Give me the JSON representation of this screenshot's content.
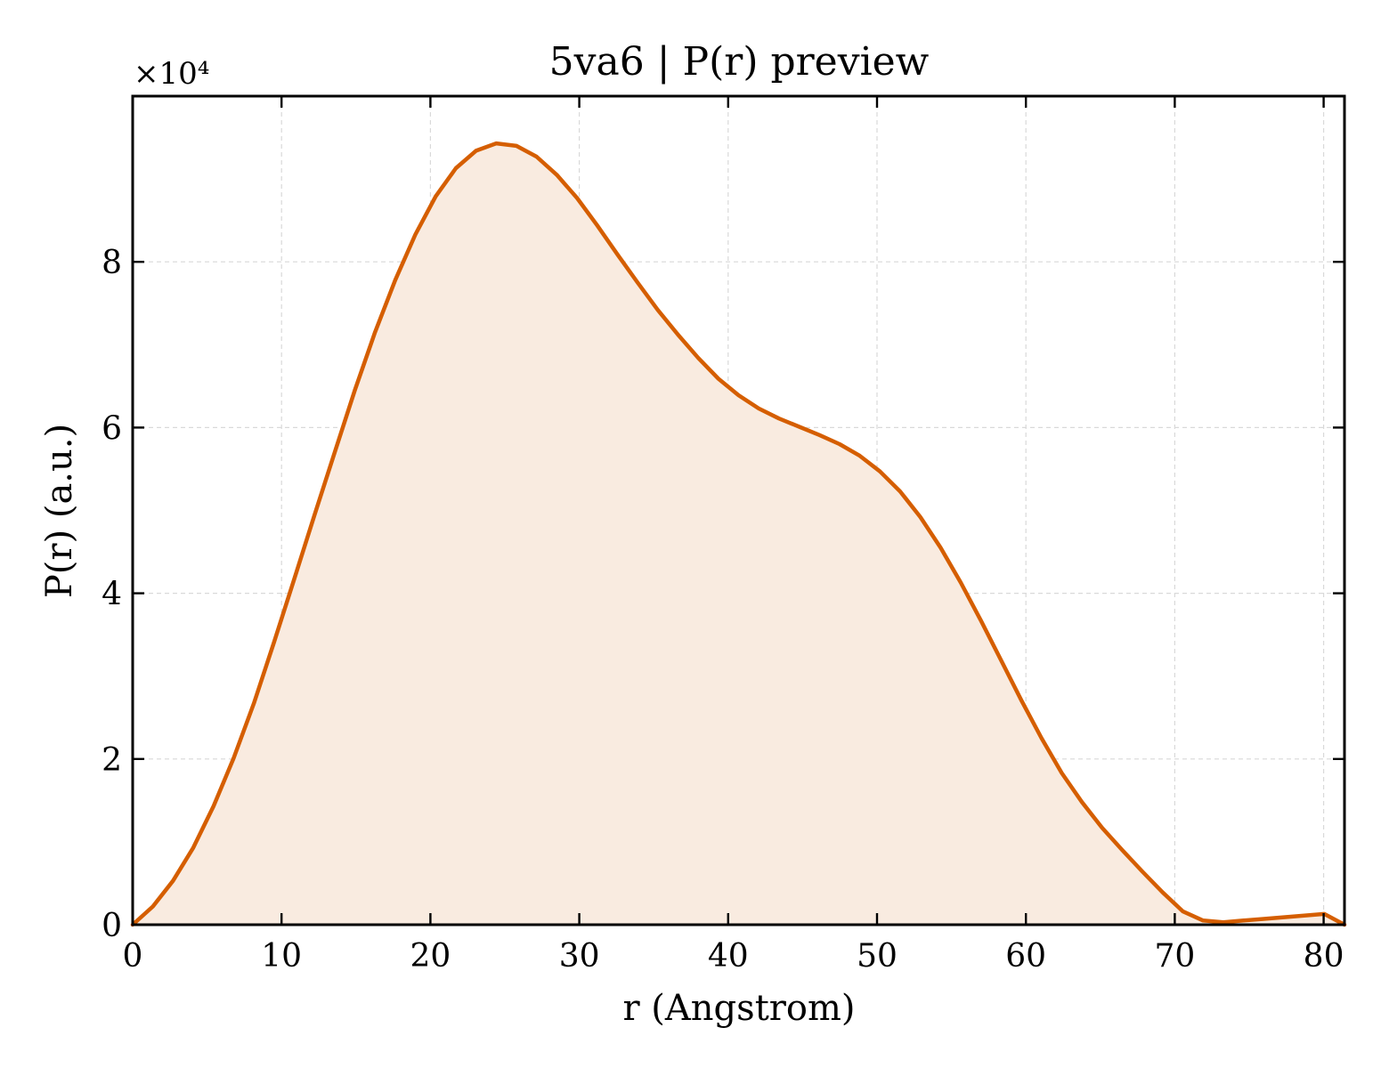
{
  "chart_data": {
    "type": "area",
    "title": "5va6 | P(r) preview",
    "xlabel": "r (Angstrom)",
    "ylabel": "P(r) (a.u.)",
    "y_offset_text": "×10⁴",
    "y_multiplier": 10000,
    "xlim": [
      0,
      81.4
    ],
    "ylim": [
      0,
      100000
    ],
    "xticks": [
      0,
      10,
      20,
      30,
      40,
      50,
      60,
      70,
      80
    ],
    "xtick_labels": [
      "0",
      "10",
      "20",
      "30",
      "40",
      "50",
      "60",
      "70",
      "80"
    ],
    "yticks": [
      0,
      20000,
      40000,
      60000,
      80000
    ],
    "ytick_labels": [
      "0",
      "2",
      "4",
      "6",
      "8"
    ],
    "grid": true,
    "colors": {
      "line": "#d55e00",
      "fill": "#f9ebe0",
      "grid": "#d9d9d9"
    },
    "series": [
      {
        "x": [
          0.0,
          1.36,
          2.71,
          4.07,
          5.43,
          6.78,
          8.14,
          9.5,
          10.85,
          12.21,
          13.57,
          14.92,
          16.28,
          17.64,
          18.99,
          20.35,
          21.71,
          23.06,
          24.42,
          25.78,
          27.13,
          28.49,
          29.85,
          31.2,
          32.56,
          33.92,
          35.27,
          36.63,
          37.99,
          39.34,
          40.7,
          42.06,
          43.41,
          44.77,
          46.13,
          47.48,
          48.84,
          50.2,
          51.55,
          52.91,
          54.27,
          55.62,
          56.98,
          58.34,
          59.69,
          61.05,
          62.41,
          63.76,
          65.12,
          66.48,
          67.83,
          69.19,
          70.55,
          71.9,
          73.26,
          74.62,
          75.97,
          77.33,
          78.69,
          80.04,
          81.4
        ],
        "y": [
          0,
          2200,
          5300,
          9300,
          14300,
          20100,
          26700,
          34100,
          41700,
          49400,
          57000,
          64500,
          71500,
          77800,
          83300,
          87900,
          91300,
          93400,
          94300,
          94000,
          92700,
          90500,
          87700,
          84400,
          80900,
          77500,
          74200,
          71200,
          68400,
          65900,
          63900,
          62300,
          61100,
          60100,
          59100,
          58000,
          56600,
          54700,
          52300,
          49200,
          45500,
          41300,
          36700,
          31900,
          27100,
          22500,
          18300,
          14800,
          11700,
          9000,
          6400,
          3900,
          1600,
          500,
          300,
          500,
          700,
          900,
          1100,
          1300,
          0
        ]
      }
    ]
  }
}
